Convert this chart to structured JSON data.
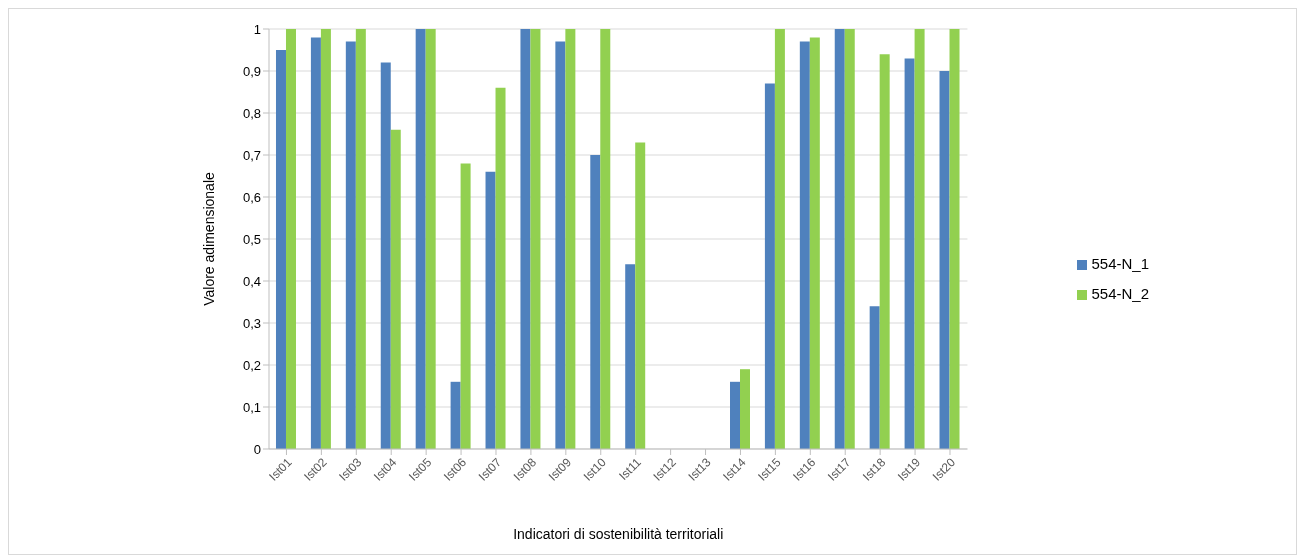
{
  "chart_data": {
    "type": "bar",
    "xlabel": "Indicatori di sostenibilità territoriali",
    "ylabel": "Valore adimensionale",
    "categories": [
      "Ist01",
      "Ist02",
      "Ist03",
      "Ist04",
      "Ist05",
      "Ist06",
      "Ist07",
      "Ist08",
      "Ist09",
      "Ist10",
      "Ist11",
      "Ist12",
      "Ist13",
      "Ist14",
      "Ist15",
      "Ist16",
      "Ist17",
      "Ist18",
      "Ist19",
      "Ist20"
    ],
    "series": [
      {
        "name": "554-N_1",
        "color": "#4f81bd",
        "values": [
          0.95,
          0.98,
          0.97,
          0.92,
          1,
          0.16,
          0.66,
          1,
          0.97,
          0.7,
          0.44,
          0,
          0,
          0.16,
          0.87,
          0.97,
          1,
          0.34,
          0.93,
          0.9
        ]
      },
      {
        "name": "554-N_2",
        "color": "#92d050",
        "values": [
          1,
          1,
          1,
          0.76,
          1,
          0.68,
          0.86,
          1,
          1,
          1,
          0.73,
          0,
          0,
          0.19,
          1,
          0.98,
          1,
          0.94,
          1,
          1
        ]
      }
    ],
    "ylim": [
      0,
      1
    ],
    "yticks": [
      0,
      {
        "value": 0.1,
        "label": "0,1"
      },
      {
        "value": 0.2,
        "label": "0,2"
      },
      {
        "value": 0.3,
        "label": "0,3"
      },
      {
        "value": 0.4,
        "label": "0,4"
      },
      {
        "value": 0.5,
        "label": "0,5"
      },
      {
        "value": 0.6,
        "label": "0,6"
      },
      {
        "value": 0.7,
        "label": "0,7"
      },
      {
        "value": 0.8,
        "label": "0,8"
      },
      {
        "value": 0.9,
        "label": "0,9"
      },
      1
    ],
    "grid": "y",
    "legend": "right"
  }
}
